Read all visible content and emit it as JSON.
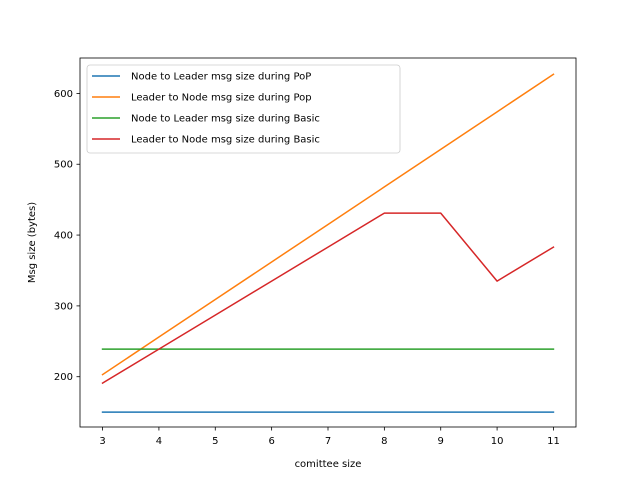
{
  "chart_data": {
    "type": "line",
    "title": "",
    "xlabel": "comittee size",
    "ylabel": "Msg size (bytes)",
    "xlim": [
      2.6,
      11.4
    ],
    "ylim": [
      129,
      650
    ],
    "x": [
      3,
      4,
      5,
      6,
      7,
      8,
      9,
      10,
      11
    ],
    "xticks": [
      3,
      4,
      5,
      6,
      7,
      8,
      9,
      10,
      11
    ],
    "yticks": [
      200,
      300,
      400,
      500,
      600
    ],
    "grid": false,
    "legend_position": "top-left",
    "series": [
      {
        "name": "Node to Leader msg size during PoP",
        "color": "#1f77b4",
        "values": [
          150,
          150,
          150,
          150,
          150,
          150,
          150,
          150,
          150
        ]
      },
      {
        "name": "Leader to Node msg size during Pop",
        "color": "#ff7f0e",
        "values": [
          203,
          256,
          309,
          362,
          415,
          468,
          521,
          574,
          627
        ]
      },
      {
        "name": "Node to Leader msg size during Basic",
        "color": "#2ca02c",
        "values": [
          239,
          239,
          239,
          239,
          239,
          239,
          239,
          239,
          239
        ]
      },
      {
        "name": "Leader to Node msg size during Basic",
        "color": "#d62728",
        "values": [
          191,
          239,
          287,
          335,
          383,
          431,
          431,
          335,
          383
        ]
      }
    ]
  }
}
